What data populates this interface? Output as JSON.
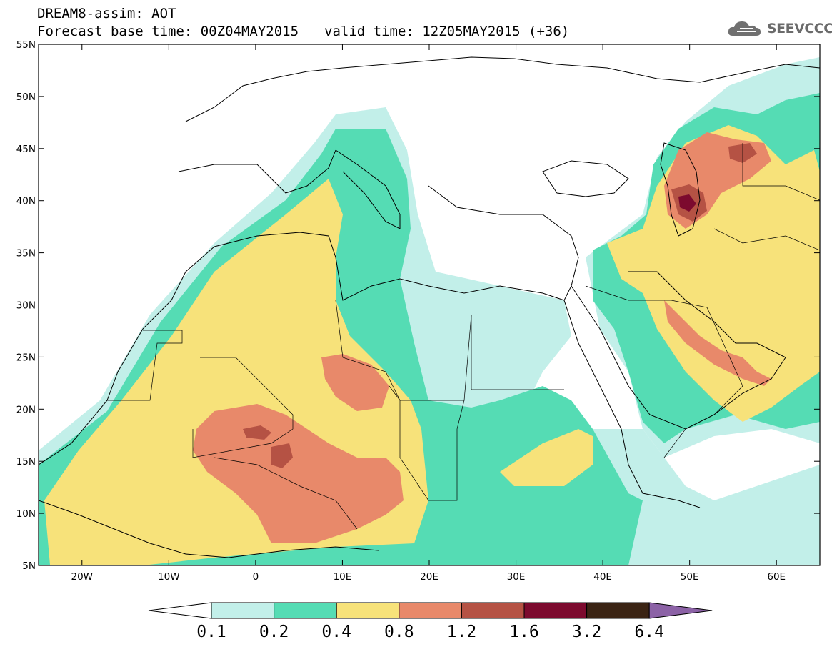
{
  "header": {
    "line1": "DREAM8-assim: AOT",
    "base_time": "Forecast base time: 00Z04MAY2015",
    "valid_time": "valid time: 12Z05MAY2015 (+36)"
  },
  "logo": {
    "text": "SEEVCCC",
    "icon": "cloud-icon"
  },
  "map": {
    "projection": "lat-lon",
    "lon_range": [
      -25,
      65
    ],
    "lat_range": [
      5,
      55
    ],
    "lat_ticks": [
      "55N",
      "50N",
      "45N",
      "40N",
      "35N",
      "30N",
      "25N",
      "20N",
      "15N",
      "10N",
      "5N"
    ],
    "lon_ticks": [
      "20W",
      "10W",
      "0",
      "10E",
      "20E",
      "30E",
      "40E",
      "50E",
      "60E"
    ]
  },
  "colorbar": {
    "labels": [
      "0.1",
      "0.2",
      "0.4",
      "0.8",
      "1.2",
      "1.6",
      "3.2",
      "6.4"
    ],
    "colors": [
      "#ffffff",
      "#c2efe9",
      "#55dcb4",
      "#f7e27a",
      "#e8896a",
      "#b55244",
      "#7c0a2e",
      "#3b2414",
      "#8c62a6"
    ]
  }
}
